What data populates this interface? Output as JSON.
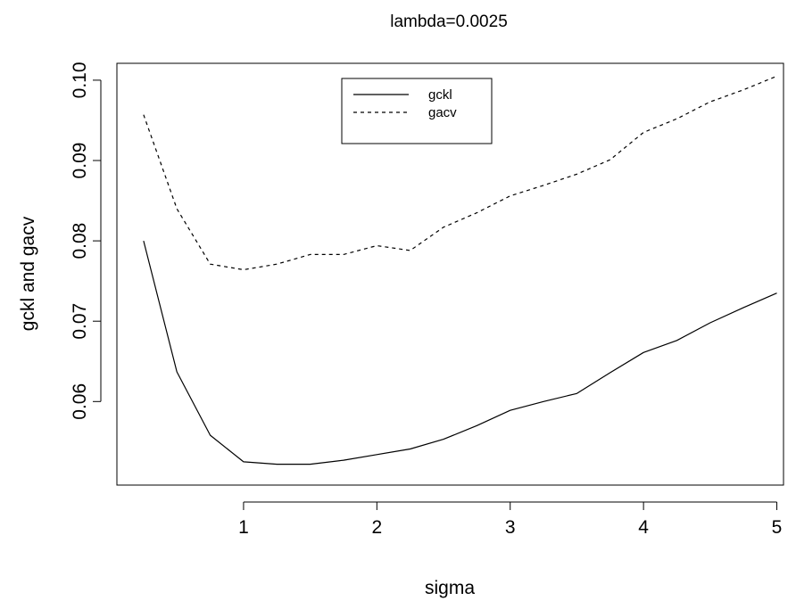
{
  "chart_data": {
    "type": "line",
    "title": "lambda=0.0025",
    "xlabel": "sigma",
    "ylabel": "gckl  and  gacv",
    "x": [
      0.25,
      0.5,
      0.75,
      1.0,
      1.25,
      1.5,
      1.75,
      2.0,
      2.25,
      2.5,
      2.75,
      3.0,
      3.25,
      3.5,
      3.75,
      4.0,
      4.25,
      4.5,
      4.75,
      5.0
    ],
    "series": [
      {
        "name": "gckl",
        "line_style": "solid",
        "values": [
          0.08,
          0.0637,
          0.0558,
          0.0525,
          0.0522,
          0.0522,
          0.0527,
          0.0534,
          0.0541,
          0.0553,
          0.057,
          0.0589,
          0.06,
          0.061,
          0.0636,
          0.0661,
          0.0676,
          0.0698,
          0.0717,
          0.0735
        ]
      },
      {
        "name": "gacv",
        "line_style": "dashed",
        "values": [
          0.0957,
          0.084,
          0.0771,
          0.0764,
          0.0771,
          0.0783,
          0.0783,
          0.0794,
          0.0788,
          0.0817,
          0.0835,
          0.0856,
          0.0869,
          0.0883,
          0.0901,
          0.0935,
          0.0952,
          0.0973,
          0.0988,
          0.1005
        ]
      }
    ],
    "xlim": [
      0.05,
      5.05
    ],
    "ylim": [
      0.0496,
      0.1021
    ],
    "xticks": [
      1,
      2,
      3,
      4,
      5
    ],
    "xtick_labels": [
      "1",
      "2",
      "3",
      "4",
      "5"
    ],
    "yticks": [
      0.06,
      0.07,
      0.08,
      0.09,
      0.1
    ],
    "ytick_labels": [
      "0.06",
      "0.07",
      "0.08",
      "0.09",
      "0.10"
    ],
    "legend_position": "top-center",
    "grid": false
  }
}
